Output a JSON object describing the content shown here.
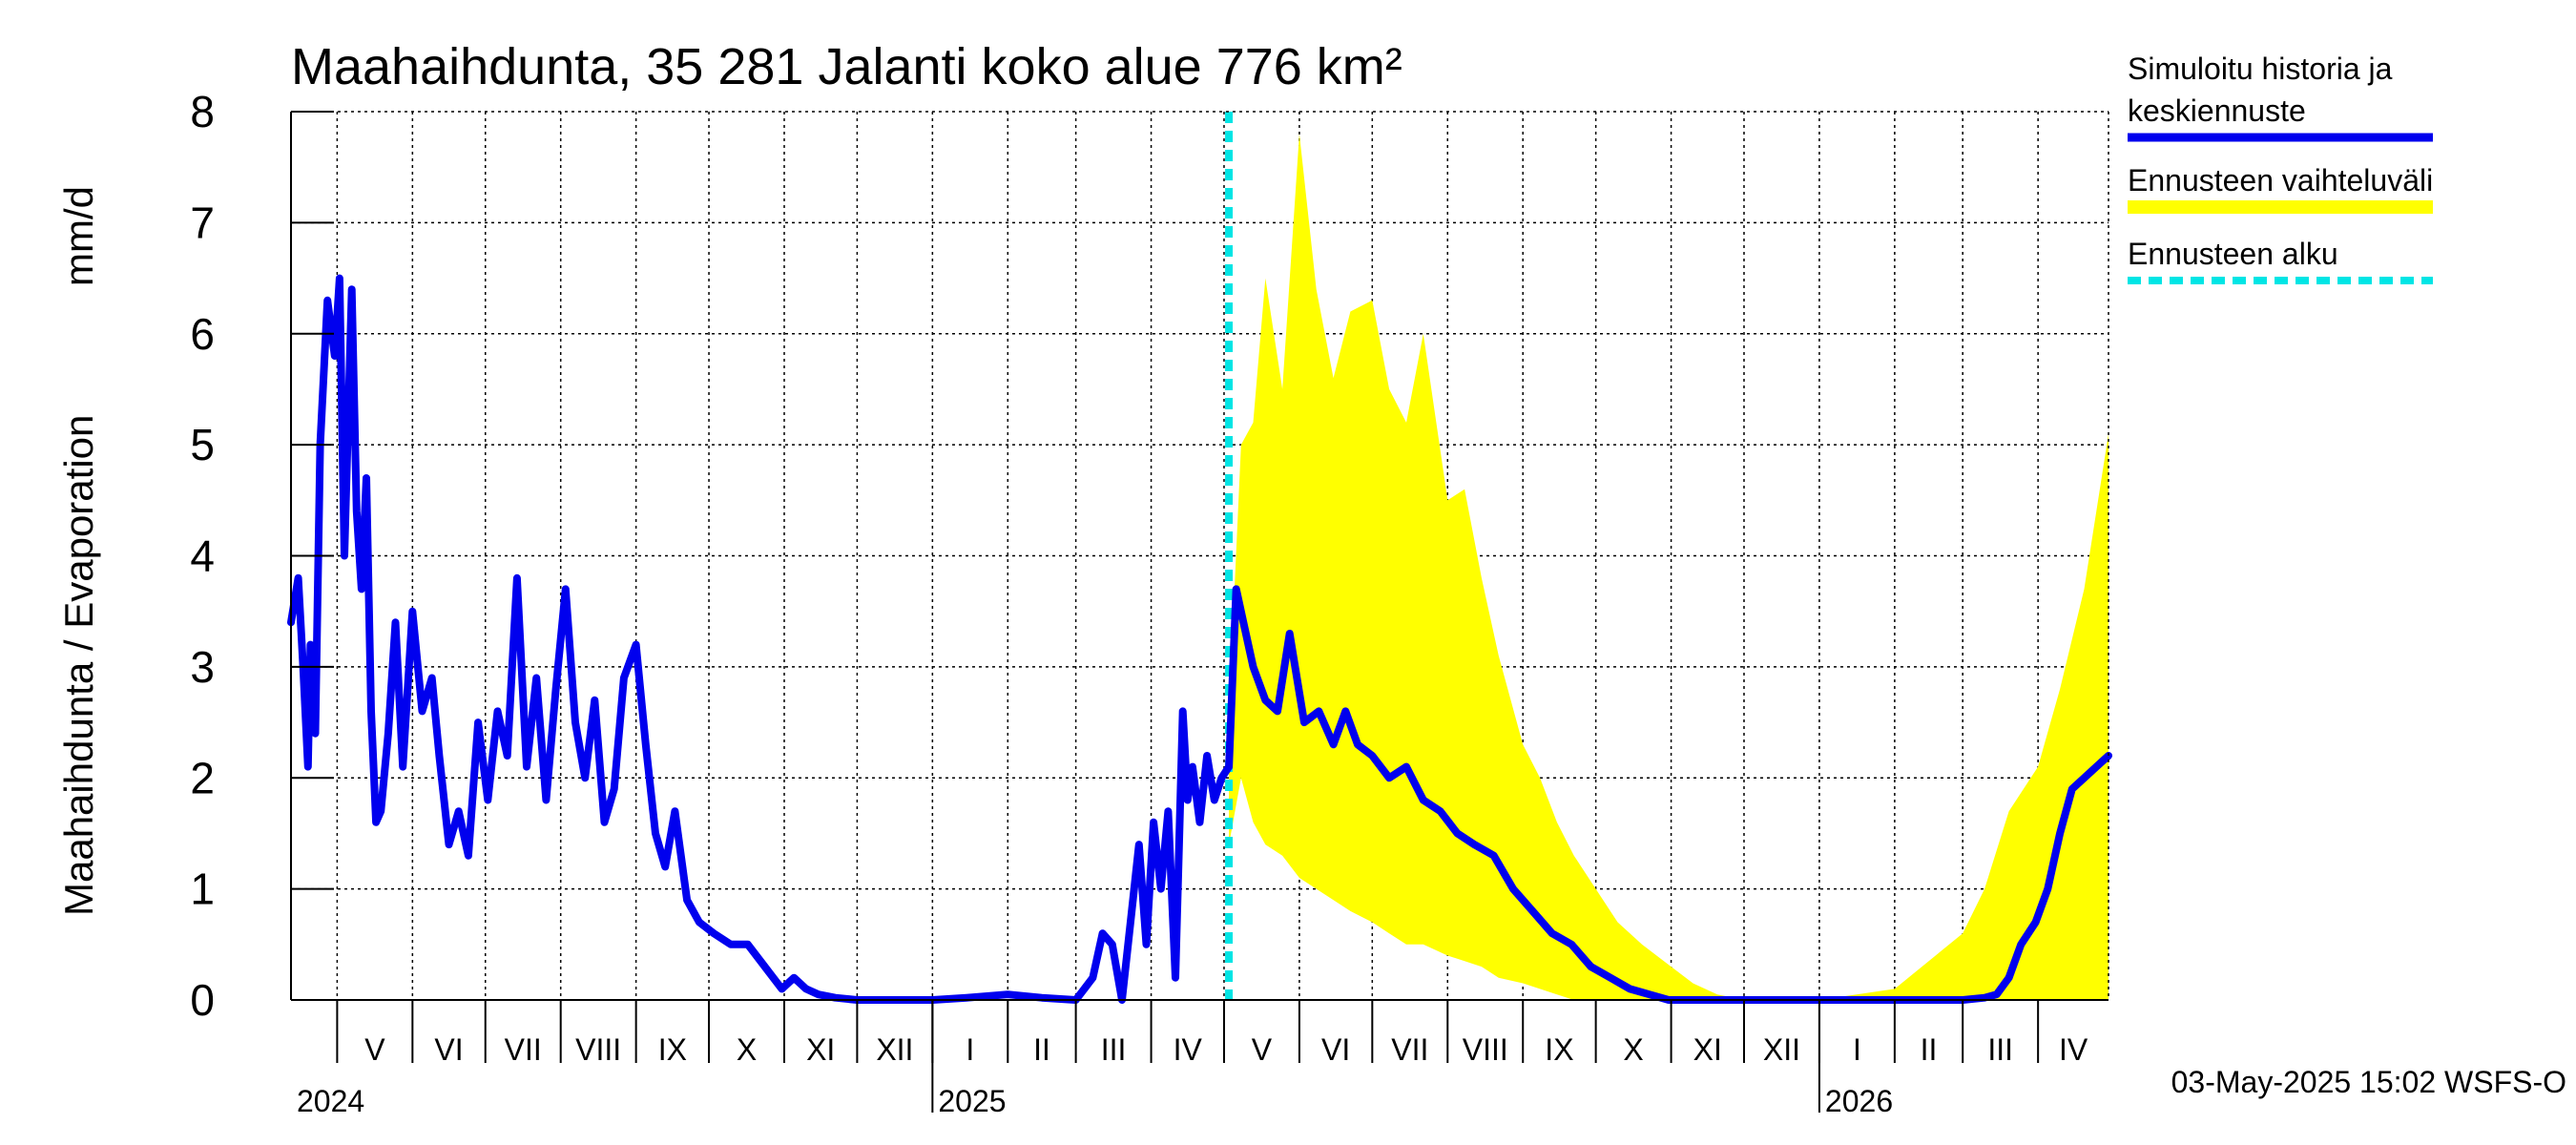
{
  "chart_data": {
    "type": "line",
    "title": "Maahaihdunta, 35 281 Jalanti koko alue 776 km²",
    "ylabel_left": "Maahaihdunta / Evaporation",
    "ylabel_unit": "mm/d",
    "ylim": [
      0,
      8
    ],
    "yticks": [
      "0",
      "1",
      "2",
      "3",
      "4",
      "5",
      "6",
      "7",
      "8"
    ],
    "x_start": "2024-04-12",
    "x_end": "2026-04-30",
    "forecast_start": "2025-05-03",
    "grid": true,
    "months": [
      {
        "label": "V",
        "start": "2024-05-01",
        "end": "2024-06-01"
      },
      {
        "label": "VI",
        "start": "2024-06-01",
        "end": "2024-07-01"
      },
      {
        "label": "VII",
        "start": "2024-07-01",
        "end": "2024-08-01"
      },
      {
        "label": "VIII",
        "start": "2024-08-01",
        "end": "2024-09-01"
      },
      {
        "label": "IX",
        "start": "2024-09-01",
        "end": "2024-10-01"
      },
      {
        "label": "X",
        "start": "2024-10-01",
        "end": "2024-11-01"
      },
      {
        "label": "XI",
        "start": "2024-11-01",
        "end": "2024-12-01"
      },
      {
        "label": "XII",
        "start": "2024-12-01",
        "end": "2025-01-01"
      },
      {
        "label": "I",
        "start": "2025-01-01",
        "end": "2025-02-01"
      },
      {
        "label": "II",
        "start": "2025-02-01",
        "end": "2025-03-01"
      },
      {
        "label": "III",
        "start": "2025-03-01",
        "end": "2025-04-01"
      },
      {
        "label": "IV",
        "start": "2025-04-01",
        "end": "2025-05-01"
      },
      {
        "label": "V",
        "start": "2025-05-01",
        "end": "2025-06-01"
      },
      {
        "label": "VI",
        "start": "2025-06-01",
        "end": "2025-07-01"
      },
      {
        "label": "VII",
        "start": "2025-07-01",
        "end": "2025-08-01"
      },
      {
        "label": "VIII",
        "start": "2025-08-01",
        "end": "2025-09-01"
      },
      {
        "label": "IX",
        "start": "2025-09-01",
        "end": "2025-10-01"
      },
      {
        "label": "X",
        "start": "2025-10-01",
        "end": "2025-11-01"
      },
      {
        "label": "XI",
        "start": "2025-11-01",
        "end": "2025-12-01"
      },
      {
        "label": "XII",
        "start": "2025-12-01",
        "end": "2026-01-01"
      },
      {
        "label": "I",
        "start": "2026-01-01",
        "end": "2026-02-01"
      },
      {
        "label": "II",
        "start": "2026-02-01",
        "end": "2026-03-01"
      },
      {
        "label": "III",
        "start": "2026-03-01",
        "end": "2026-04-01"
      },
      {
        "label": "IV",
        "start": "2026-04-01",
        "end": "2026-05-01"
      }
    ],
    "years": [
      {
        "label": "2024",
        "date": "2024-04-12"
      },
      {
        "label": "2025",
        "date": "2025-01-01"
      },
      {
        "label": "2026",
        "date": "2026-01-01"
      }
    ],
    "series": [
      {
        "name": "Simuloitu historia ja keskiennuste",
        "color": "#0000ee",
        "x": [
          "2024-04-12",
          "2024-04-15",
          "2024-04-17",
          "2024-04-19",
          "2024-04-20",
          "2024-04-22",
          "2024-04-24",
          "2024-04-27",
          "2024-04-30",
          "2024-05-02",
          "2024-05-04",
          "2024-05-07",
          "2024-05-09",
          "2024-05-11",
          "2024-05-13",
          "2024-05-15",
          "2024-05-17",
          "2024-05-19",
          "2024-05-22",
          "2024-05-25",
          "2024-05-28",
          "2024-06-01",
          "2024-06-05",
          "2024-06-09",
          "2024-06-12",
          "2024-06-16",
          "2024-06-20",
          "2024-06-24",
          "2024-06-28",
          "2024-07-02",
          "2024-07-06",
          "2024-07-10",
          "2024-07-14",
          "2024-07-18",
          "2024-07-22",
          "2024-07-26",
          "2024-07-30",
          "2024-08-03",
          "2024-08-07",
          "2024-08-11",
          "2024-08-15",
          "2024-08-19",
          "2024-08-23",
          "2024-08-27",
          "2024-09-01",
          "2024-09-05",
          "2024-09-09",
          "2024-09-13",
          "2024-09-17",
          "2024-09-22",
          "2024-09-27",
          "2024-10-03",
          "2024-10-10",
          "2024-10-17",
          "2024-10-24",
          "2024-10-31",
          "2024-11-05",
          "2024-11-10",
          "2024-11-15",
          "2024-11-22",
          "2024-12-01",
          "2024-12-15",
          "2025-01-01",
          "2025-01-15",
          "2025-02-01",
          "2025-02-15",
          "2025-03-01",
          "2025-03-08",
          "2025-03-12",
          "2025-03-16",
          "2025-03-20",
          "2025-03-24",
          "2025-03-27",
          "2025-03-30",
          "2025-04-02",
          "2025-04-05",
          "2025-04-08",
          "2025-04-11",
          "2025-04-14",
          "2025-04-16",
          "2025-04-18",
          "2025-04-21",
          "2025-04-24",
          "2025-04-27",
          "2025-04-30",
          "2025-05-03",
          "2025-05-06",
          "2025-05-09",
          "2025-05-13",
          "2025-05-18",
          "2025-05-23",
          "2025-05-28",
          "2025-06-03",
          "2025-06-09",
          "2025-06-15",
          "2025-06-20",
          "2025-06-25",
          "2025-07-01",
          "2025-07-08",
          "2025-07-15",
          "2025-07-22",
          "2025-07-29",
          "2025-08-05",
          "2025-08-12",
          "2025-08-20",
          "2025-08-28",
          "2025-09-05",
          "2025-09-13",
          "2025-09-21",
          "2025-09-29",
          "2025-10-07",
          "2025-10-15",
          "2025-10-23",
          "2025-10-31",
          "2025-11-10",
          "2025-11-20",
          "2025-12-01",
          "2026-01-01",
          "2026-02-01",
          "2026-03-01",
          "2026-03-10",
          "2026-03-15",
          "2026-03-20",
          "2026-03-25",
          "2026-03-31",
          "2026-04-05",
          "2026-04-10",
          "2026-04-15",
          "2026-04-20",
          "2026-04-25",
          "2026-04-30"
        ],
        "y": [
          3.4,
          3.8,
          3.0,
          2.1,
          3.2,
          2.4,
          5.0,
          6.3,
          5.8,
          6.5,
          4.0,
          6.4,
          4.4,
          3.7,
          4.7,
          2.6,
          1.6,
          1.7,
          2.4,
          3.4,
          2.1,
          3.5,
          2.6,
          2.9,
          2.2,
          1.4,
          1.7,
          1.3,
          2.5,
          1.8,
          2.6,
          2.2,
          3.8,
          2.1,
          2.9,
          1.8,
          2.8,
          3.7,
          2.5,
          2.0,
          2.7,
          1.6,
          1.9,
          2.9,
          3.2,
          2.3,
          1.5,
          1.2,
          1.7,
          0.9,
          0.7,
          0.6,
          0.5,
          0.5,
          0.3,
          0.1,
          0.2,
          0.1,
          0.05,
          0.02,
          0.0,
          0.0,
          0.0,
          0.02,
          0.05,
          0.02,
          0.0,
          0.2,
          0.6,
          0.5,
          0.0,
          0.8,
          1.4,
          0.5,
          1.6,
          1.0,
          1.7,
          0.2,
          2.6,
          1.8,
          2.1,
          1.6,
          2.2,
          1.8,
          2.0,
          2.1,
          3.7,
          3.4,
          3.0,
          2.7,
          2.6,
          3.3,
          2.5,
          2.6,
          2.3,
          2.6,
          2.3,
          2.2,
          2.0,
          2.1,
          1.8,
          1.7,
          1.5,
          1.4,
          1.3,
          1.0,
          0.8,
          0.6,
          0.5,
          0.3,
          0.2,
          0.1,
          0.05,
          0.0,
          0.0,
          0.0,
          0.0,
          0.0,
          0.0,
          0.0,
          0.02,
          0.05,
          0.2,
          0.5,
          0.7,
          1.0,
          1.5,
          1.9,
          2.0,
          2.1,
          2.2
        ]
      },
      {
        "name": "Ennusteen vaihteluväli",
        "color": "#ffff00",
        "x": [
          "2025-05-03",
          "2025-05-08",
          "2025-05-13",
          "2025-05-18",
          "2025-05-25",
          "2025-06-01",
          "2025-06-08",
          "2025-06-15",
          "2025-06-22",
          "2025-07-01",
          "2025-07-08",
          "2025-07-15",
          "2025-07-22",
          "2025-08-01",
          "2025-08-08",
          "2025-08-15",
          "2025-08-22",
          "2025-09-01",
          "2025-09-08",
          "2025-09-15",
          "2025-09-22",
          "2025-10-01",
          "2025-10-10",
          "2025-10-20",
          "2025-11-01",
          "2025-11-10",
          "2025-11-20",
          "2025-12-01",
          "2026-01-01",
          "2026-02-01",
          "2026-03-01",
          "2026-03-10",
          "2026-03-20",
          "2026-04-01",
          "2026-04-10",
          "2026-04-20",
          "2026-04-30"
        ],
        "upper": [
          2.6,
          5.0,
          5.2,
          6.5,
          5.5,
          7.8,
          6.4,
          5.6,
          6.2,
          6.3,
          5.5,
          5.2,
          6.0,
          4.5,
          4.6,
          3.8,
          3.1,
          2.3,
          2.0,
          1.6,
          1.3,
          1.0,
          0.7,
          0.5,
          0.3,
          0.15,
          0.05,
          0.0,
          0.0,
          0.1,
          0.6,
          1.0,
          1.7,
          2.1,
          2.8,
          3.7,
          5.1
        ],
        "lower": [
          1.4,
          2.0,
          1.6,
          1.4,
          1.3,
          1.1,
          1.0,
          0.9,
          0.8,
          0.7,
          0.6,
          0.5,
          0.5,
          0.4,
          0.35,
          0.3,
          0.2,
          0.15,
          0.1,
          0.05,
          0.0,
          0.0,
          0.0,
          0.0,
          0.0,
          0.0,
          0.0,
          0.0,
          0.0,
          0.0,
          0.0,
          0.0,
          0.0,
          0.0,
          0.0,
          0.0,
          0.0
        ]
      },
      {
        "name": "Ennusteen alku",
        "color": "#00e5e5"
      }
    ],
    "legend": [
      {
        "label_line1": "Simuloitu historia ja",
        "label_line2": "keskiennuste",
        "color": "#0000ee",
        "style": "solid"
      },
      {
        "label_line1": "Ennusteen vaihteluväli",
        "label_line2": "",
        "color": "#ffff00",
        "style": "solid"
      },
      {
        "label_line1": "Ennusteen alku",
        "label_line2": "",
        "color": "#00e5e5",
        "style": "dashed"
      }
    ],
    "legend_position": "right"
  },
  "footer": "03-May-2025 15:02 WSFS-O"
}
